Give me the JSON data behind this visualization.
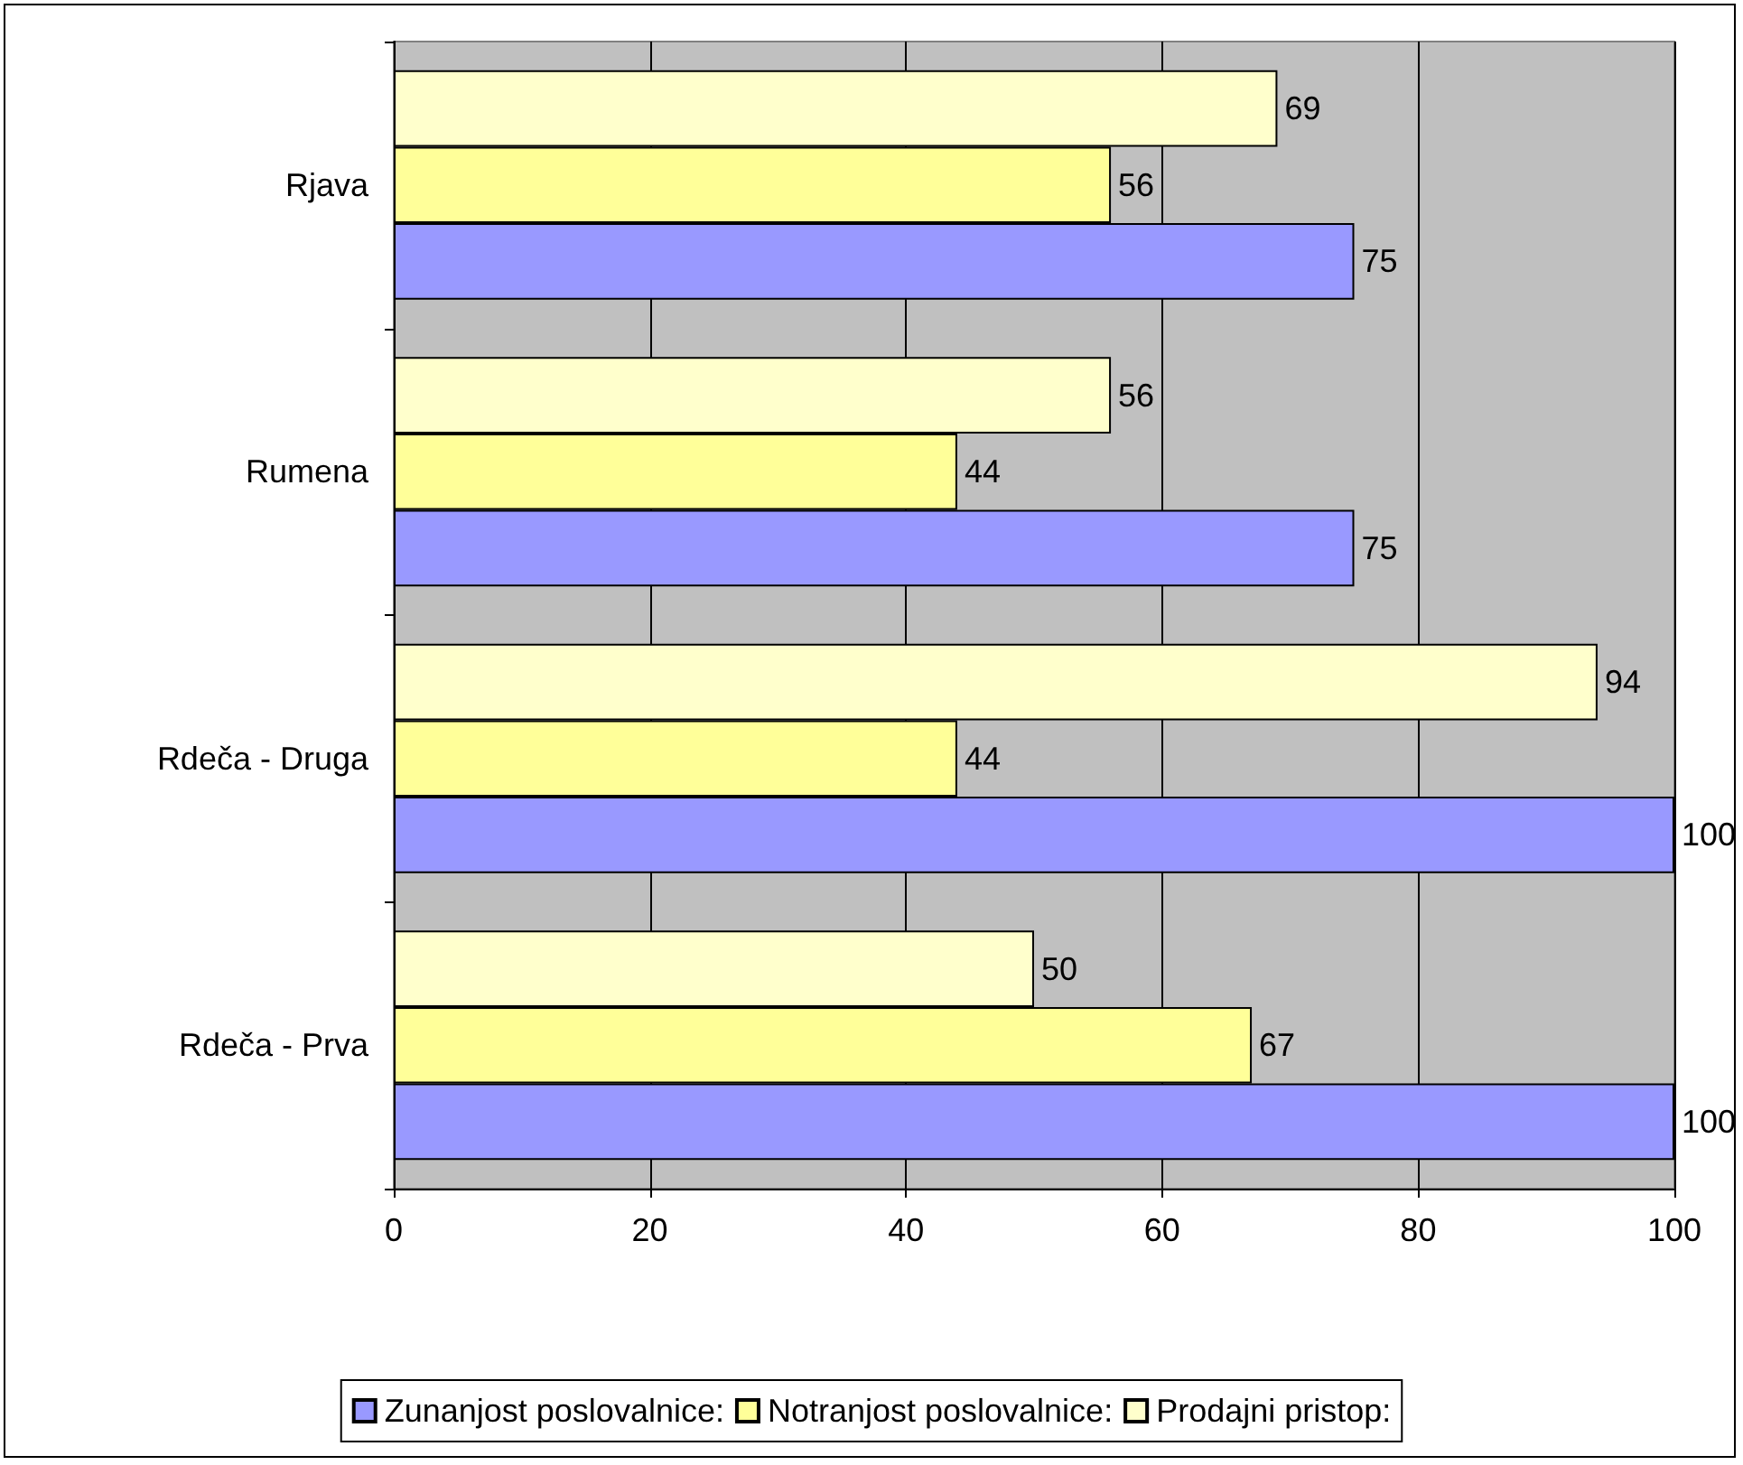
{
  "chart_data": {
    "type": "bar",
    "orientation": "horizontal",
    "categories": [
      "Rjava",
      "Rumena",
      "Rdeča - Druga",
      "Rdeča - Prva"
    ],
    "series": [
      {
        "name": "Zunanjost poslovalnice:",
        "color": "#9999ff",
        "values": [
          75,
          75,
          100,
          100
        ]
      },
      {
        "name": "Notranjost poslovalnice:",
        "color": "#ffff99",
        "values": [
          56,
          44,
          44,
          67
        ]
      },
      {
        "name": "Prodajni pristop:",
        "color": "#ffffcc",
        "values": [
          69,
          56,
          94,
          50
        ]
      }
    ],
    "xlim": [
      0,
      100
    ],
    "xticks": [
      0,
      20,
      40,
      60,
      80,
      100
    ],
    "grid": "x",
    "legend": "bottom",
    "data_labels": true
  }
}
